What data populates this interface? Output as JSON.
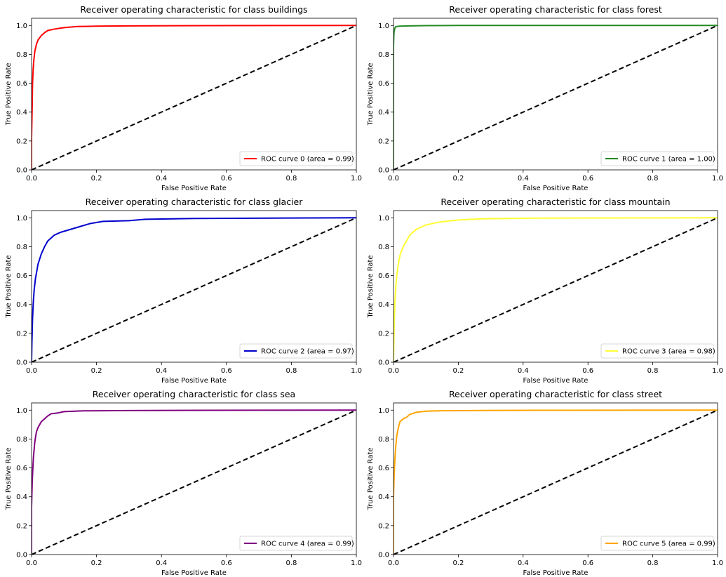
{
  "chart_data": [
    {
      "type": "line",
      "title": "Receiver operating characteristic for class buildings",
      "xlabel": "False Positive Rate",
      "ylabel": "True Positive Rate",
      "xlim": [
        0.0,
        1.0
      ],
      "ylim": [
        0.0,
        1.05
      ],
      "xticks": [
        "0.0",
        "0.2",
        "0.4",
        "0.6",
        "0.8",
        "1.0"
      ],
      "yticks": [
        "0.0",
        "0.2",
        "0.4",
        "0.6",
        "0.8",
        "1.0"
      ],
      "legend": "lower-right",
      "series": [
        {
          "name": "ROC curve 0 (area = 0.99)",
          "color": "#ff0000",
          "x": [
            0.0,
            0.0,
            0.002,
            0.003,
            0.005,
            0.007,
            0.01,
            0.015,
            0.02,
            0.03,
            0.04,
            0.05,
            0.07,
            0.1,
            0.14,
            0.2,
            0.3,
            0.55,
            1.0
          ],
          "y": [
            0.0,
            0.22,
            0.45,
            0.6,
            0.7,
            0.76,
            0.82,
            0.87,
            0.9,
            0.93,
            0.95,
            0.965,
            0.975,
            0.985,
            0.993,
            0.995,
            0.997,
            0.999,
            1.0
          ]
        },
        {
          "name": "",
          "color": "#000000",
          "style": "dashed",
          "x": [
            0.0,
            1.0
          ],
          "y": [
            0.0,
            1.0
          ]
        }
      ]
    },
    {
      "type": "line",
      "title": "Receiver operating characteristic for class forest",
      "xlabel": "False Positive Rate",
      "ylabel": "True Positive Rate",
      "xlim": [
        0.0,
        1.0
      ],
      "ylim": [
        0.0,
        1.05
      ],
      "xticks": [
        "0.0",
        "0.2",
        "0.4",
        "0.6",
        "0.8",
        "1.0"
      ],
      "yticks": [
        "0.0",
        "0.2",
        "0.4",
        "0.6",
        "0.8",
        "1.0"
      ],
      "legend": "lower-right",
      "series": [
        {
          "name": "ROC curve 1 (area = 1.00)",
          "color": "#228b22",
          "x": [
            0.0,
            0.0,
            0.001,
            0.002,
            0.004,
            0.006,
            0.01,
            0.02,
            0.05,
            0.1,
            0.2,
            1.0
          ],
          "y": [
            0.0,
            0.85,
            0.93,
            0.96,
            0.98,
            0.99,
            0.993,
            0.995,
            0.997,
            0.999,
            1.0,
            1.0
          ]
        },
        {
          "name": "",
          "color": "#000000",
          "style": "dashed",
          "x": [
            0.0,
            1.0
          ],
          "y": [
            0.0,
            1.0
          ]
        }
      ]
    },
    {
      "type": "line",
      "title": "Receiver operating characteristic for class glacier",
      "xlabel": "False Positive Rate",
      "ylabel": "True Positive Rate",
      "xlim": [
        0.0,
        1.0
      ],
      "ylim": [
        0.0,
        1.05
      ],
      "xticks": [
        "0.0",
        "0.2",
        "0.4",
        "0.6",
        "0.8",
        "1.0"
      ],
      "yticks": [
        "0.0",
        "0.2",
        "0.4",
        "0.6",
        "0.8",
        "1.0"
      ],
      "legend": "lower-right",
      "series": [
        {
          "name": "ROC curve 2 (area = 0.97)",
          "color": "#0000cd",
          "x": [
            0.0,
            0.001,
            0.003,
            0.005,
            0.008,
            0.012,
            0.02,
            0.03,
            0.04,
            0.05,
            0.06,
            0.07,
            0.09,
            0.12,
            0.15,
            0.18,
            0.22,
            0.3,
            0.35,
            0.5,
            0.85,
            1.0
          ],
          "y": [
            0.0,
            0.13,
            0.3,
            0.4,
            0.5,
            0.58,
            0.68,
            0.75,
            0.8,
            0.84,
            0.86,
            0.88,
            0.9,
            0.92,
            0.94,
            0.96,
            0.975,
            0.98,
            0.99,
            0.995,
            0.999,
            1.0
          ]
        },
        {
          "name": "",
          "color": "#000000",
          "style": "dashed",
          "x": [
            0.0,
            1.0
          ],
          "y": [
            0.0,
            1.0
          ]
        }
      ]
    },
    {
      "type": "line",
      "title": "Receiver operating characteristic for class mountain",
      "xlabel": "False Positive Rate",
      "ylabel": "True Positive Rate",
      "xlim": [
        0.0,
        1.0
      ],
      "ylim": [
        0.0,
        1.05
      ],
      "xticks": [
        "0.0",
        "0.2",
        "0.4",
        "0.6",
        "0.8",
        "1.0"
      ],
      "yticks": [
        "0.0",
        "0.2",
        "0.4",
        "0.6",
        "0.8",
        "1.0"
      ],
      "legend": "lower-right",
      "series": [
        {
          "name": "ROC curve 3 (area = 0.98)",
          "color": "#ffff33",
          "x": [
            0.0,
            0.002,
            0.004,
            0.007,
            0.01,
            0.015,
            0.02,
            0.03,
            0.04,
            0.05,
            0.07,
            0.1,
            0.14,
            0.2,
            0.27,
            0.45,
            1.0
          ],
          "y": [
            0.0,
            0.25,
            0.4,
            0.52,
            0.6,
            0.68,
            0.74,
            0.8,
            0.84,
            0.88,
            0.92,
            0.95,
            0.97,
            0.985,
            0.993,
            0.998,
            1.0
          ]
        },
        {
          "name": "",
          "color": "#000000",
          "style": "dashed",
          "x": [
            0.0,
            1.0
          ],
          "y": [
            0.0,
            1.0
          ]
        }
      ]
    },
    {
      "type": "line",
      "title": "Receiver operating characteristic for class sea",
      "xlabel": "False Positive Rate",
      "ylabel": "True Positive Rate",
      "xlim": [
        0.0,
        1.0
      ],
      "ylim": [
        0.0,
        1.05
      ],
      "xticks": [
        "0.0",
        "0.2",
        "0.4",
        "0.6",
        "0.8",
        "1.0"
      ],
      "yticks": [
        "0.0",
        "0.2",
        "0.4",
        "0.6",
        "0.8",
        "1.0"
      ],
      "legend": "lower-right",
      "series": [
        {
          "name": "ROC curve 4 (area = 0.99)",
          "color": "#800080",
          "x": [
            0.0,
            0.0,
            0.002,
            0.004,
            0.006,
            0.01,
            0.015,
            0.02,
            0.03,
            0.04,
            0.05,
            0.06,
            0.08,
            0.1,
            0.16,
            0.3,
            0.55,
            1.0
          ],
          "y": [
            0.0,
            0.33,
            0.5,
            0.6,
            0.68,
            0.78,
            0.85,
            0.88,
            0.92,
            0.94,
            0.96,
            0.975,
            0.98,
            0.99,
            0.995,
            0.997,
            0.999,
            1.0
          ]
        },
        {
          "name": "",
          "color": "#000000",
          "style": "dashed",
          "x": [
            0.0,
            1.0
          ],
          "y": [
            0.0,
            1.0
          ]
        }
      ]
    },
    {
      "type": "line",
      "title": "Receiver operating characteristic for class street",
      "xlabel": "False Positive Rate",
      "ylabel": "True Positive Rate",
      "xlim": [
        0.0,
        1.0
      ],
      "ylim": [
        0.0,
        1.05
      ],
      "xticks": [
        "0.0",
        "0.2",
        "0.4",
        "0.6",
        "0.8",
        "1.0"
      ],
      "yticks": [
        "0.0",
        "0.2",
        "0.4",
        "0.6",
        "0.8",
        "1.0"
      ],
      "legend": "lower-right",
      "series": [
        {
          "name": "ROC curve 5 (area = 0.99)",
          "color": "#ffa500",
          "x": [
            0.0,
            0.0,
            0.002,
            0.004,
            0.007,
            0.01,
            0.015,
            0.02,
            0.03,
            0.04,
            0.05,
            0.07,
            0.1,
            0.15,
            0.28,
            0.5,
            1.0
          ],
          "y": [
            0.0,
            0.4,
            0.55,
            0.65,
            0.75,
            0.82,
            0.88,
            0.92,
            0.94,
            0.95,
            0.97,
            0.985,
            0.993,
            0.996,
            0.998,
            0.999,
            1.0
          ]
        },
        {
          "name": "",
          "color": "#000000",
          "style": "dashed",
          "x": [
            0.0,
            1.0
          ],
          "y": [
            0.0,
            1.0
          ]
        }
      ]
    }
  ]
}
